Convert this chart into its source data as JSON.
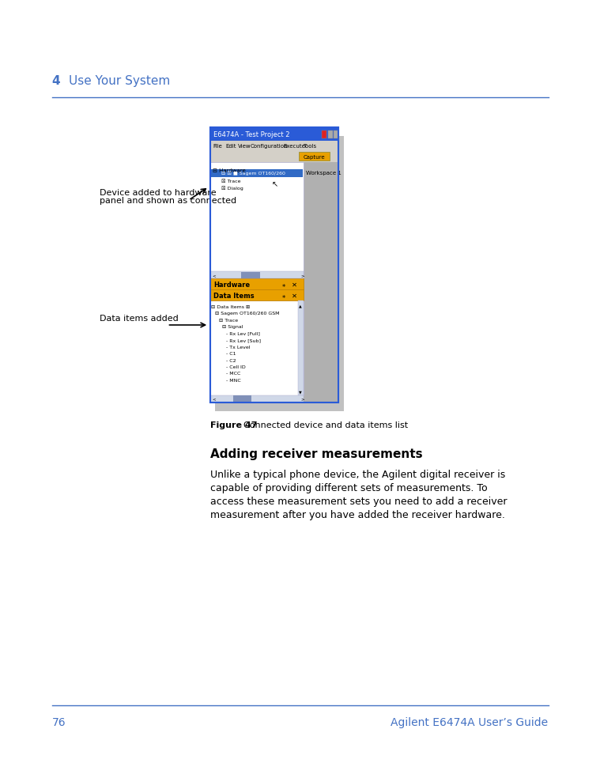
{
  "bg_color": "#ffffff",
  "page_width": 9.54,
  "page_height": 12.35,
  "header_chapter": "4",
  "header_title": "Use Your System",
  "header_color": "#4472c4",
  "footer_page": "76",
  "footer_right": "Agilent E6474A User’s Guide",
  "footer_color": "#4472c4",
  "section_heading": "Adding receiver measurements",
  "body_lines": [
    "Unlike a typical phone device, the Agilent digital receiver is",
    "capable of providing different sets of measurements. To",
    "access these measurement sets you need to add a receiver",
    "measurement after you have added the receiver hardware."
  ],
  "figure_caption_bold": "Figure 47",
  "figure_caption_normal": "    Connected device and data items list",
  "annotation1_line1": "Device added to hardware",
  "annotation1_line2": "panel and shown as connected",
  "annotation2": "Data items added",
  "titlebar_text": "E6474A - Test Project 2",
  "titlebar_color": "#3a6bc8",
  "menu_items": [
    "File",
    "Edit",
    "View",
    "Configuration",
    "Execute",
    "Tools"
  ],
  "hardware_panel_title": "Hardware",
  "dataitems_panel_title": "Data Items",
  "panel_title_color": "#e8a000",
  "workspace_label": "Workspace 1",
  "capture_btn_color": "#e8a000",
  "shadow_color": "#888888",
  "window_border_color": "#2a5bd7",
  "panel_content_color": "#eef0f8",
  "scrollbar_color": "#b0c0e0"
}
